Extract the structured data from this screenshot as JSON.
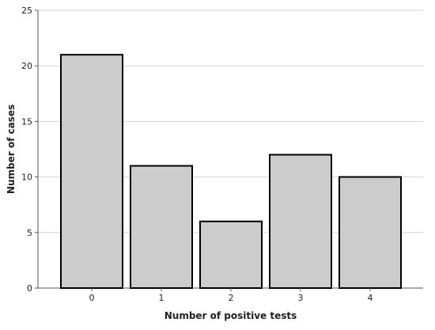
{
  "chart_data": {
    "type": "bar",
    "categories": [
      "0",
      "1",
      "2",
      "3",
      "4"
    ],
    "values": [
      21,
      11,
      6,
      12,
      10
    ],
    "xlabel": "Number of positive tests",
    "ylabel": "Number of cases",
    "ylim": [
      0,
      25
    ],
    "yticks": [
      0,
      5,
      10,
      15,
      20,
      25
    ],
    "grid": true,
    "bar_color": "#cccccc",
    "bar_edge_color": "#000000"
  }
}
